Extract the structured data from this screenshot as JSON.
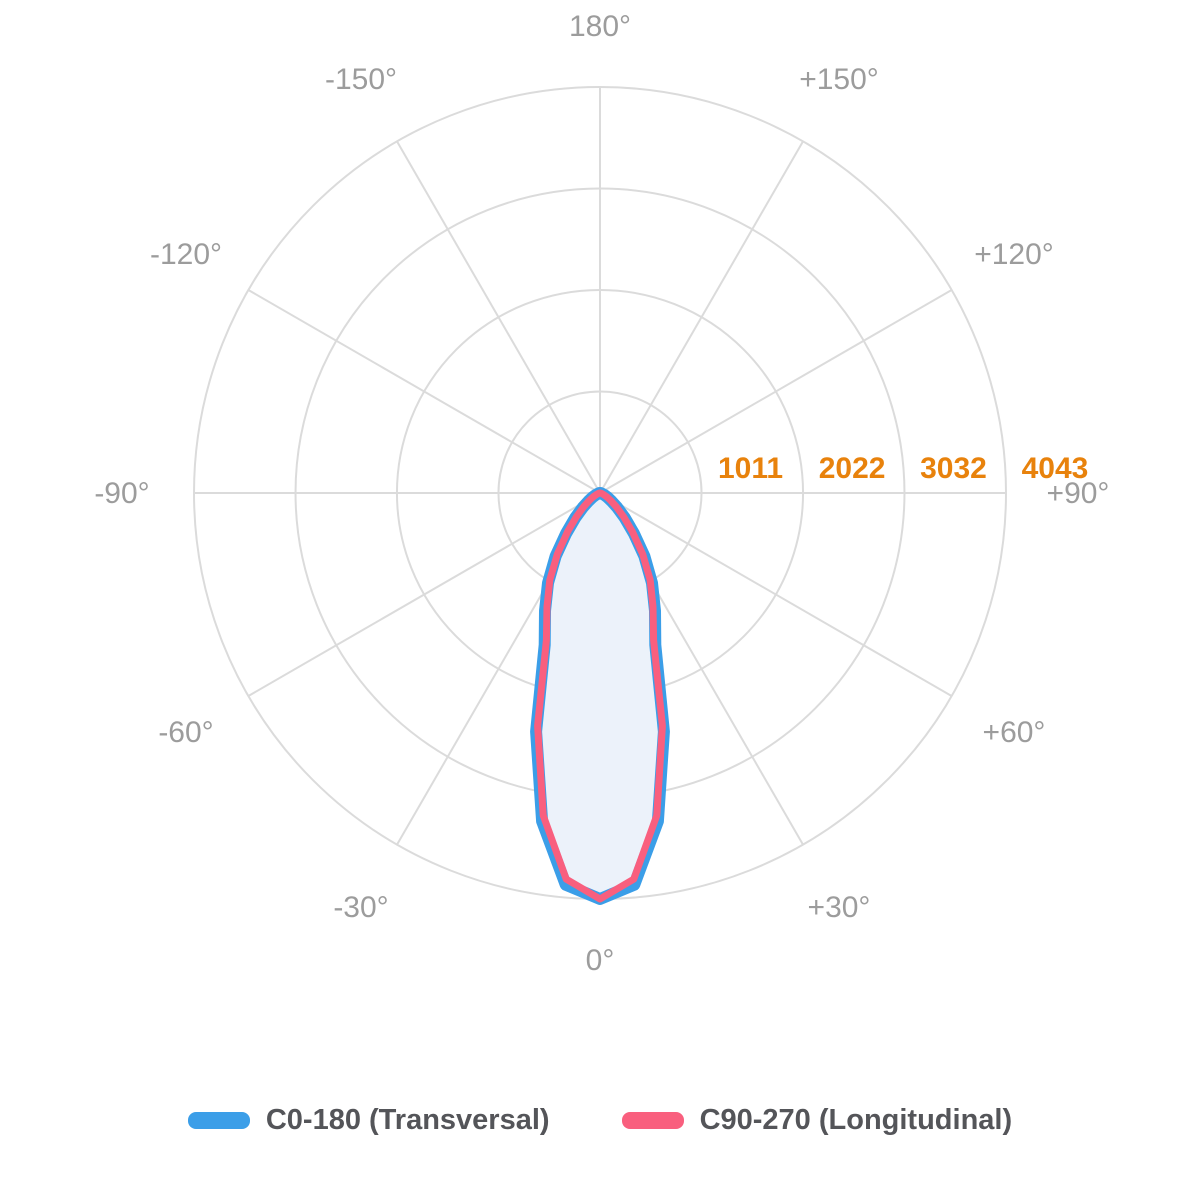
{
  "chart_data": {
    "type": "polar",
    "title": "",
    "description": "Photometric polar intensity distribution diagram, 0° at bottom, 180° at top",
    "angle_labels": [
      {
        "angle": 180,
        "label": "180°"
      },
      {
        "angle": -150,
        "label": "-150°"
      },
      {
        "angle": 150,
        "label": "+150°"
      },
      {
        "angle": -120,
        "label": "-120°"
      },
      {
        "angle": 120,
        "label": "+120°"
      },
      {
        "angle": -90,
        "label": "-90°"
      },
      {
        "angle": 90,
        "label": "+90°"
      },
      {
        "angle": -60,
        "label": "-60°"
      },
      {
        "angle": 60,
        "label": "+60°"
      },
      {
        "angle": -30,
        "label": "-30°"
      },
      {
        "angle": 30,
        "label": "+30°"
      },
      {
        "angle": 0,
        "label": "0°"
      }
    ],
    "radial_ticks": [
      {
        "value": 1011,
        "label": "1011"
      },
      {
        "value": 2022,
        "label": "2022"
      },
      {
        "value": 3032,
        "label": "3032"
      },
      {
        "value": 4043,
        "label": "4043"
      }
    ],
    "scale_max": 4043,
    "grid": true,
    "spoke_step_deg": 30,
    "angles_deg": [
      -90,
      -85,
      -80,
      -75,
      -70,
      -65,
      -60,
      -55,
      -50,
      -45,
      -40,
      -35,
      -30,
      -25,
      -20,
      -15,
      -10,
      -5,
      0,
      5,
      10,
      15,
      20,
      25,
      30,
      35,
      40,
      45,
      50,
      55,
      60,
      65,
      70,
      75,
      80,
      85,
      90
    ],
    "series": [
      {
        "name": "C0-180 (Transversal)",
        "color": "#3B9EE8",
        "fill": "#ECF2FA",
        "values": [
          0,
          3,
          7,
          14,
          28,
          50,
          87,
          140,
          222,
          348,
          524,
          770,
          1035,
          1295,
          1610,
          2460,
          3320,
          3915,
          4043,
          3915,
          3320,
          2460,
          1610,
          1295,
          1035,
          770,
          524,
          348,
          222,
          140,
          87,
          50,
          28,
          14,
          7,
          3,
          0
        ]
      },
      {
        "name": "C90-270 (Longitudinal)",
        "color": "#F95F7E",
        "fill": "none",
        "values": [
          0,
          2,
          5,
          12,
          25,
          45,
          80,
          130,
          210,
          330,
          500,
          740,
          1000,
          1250,
          1560,
          2400,
          3260,
          3860,
          4043,
          3860,
          3260,
          2400,
          1560,
          1250,
          1000,
          740,
          500,
          330,
          210,
          130,
          80,
          45,
          25,
          12,
          5,
          2,
          0
        ]
      }
    ],
    "legend_position": "bottom"
  },
  "legend": {
    "items": [
      {
        "label": "C0-180 (Transversal)",
        "color": "#3B9EE8"
      },
      {
        "label": "C90-270 (Longitudinal)",
        "color": "#F95F7E"
      }
    ]
  },
  "colors": {
    "background": "#FFFFFF",
    "grid": "#DBDBDB",
    "angle_label": "#9C9C9C",
    "radial_tick_label": "#E8820C",
    "legend_text": "#545559",
    "series_c0": "#3B9EE8",
    "series_c90": "#F95F7E",
    "lobe_fill": "#ECF2FA"
  }
}
